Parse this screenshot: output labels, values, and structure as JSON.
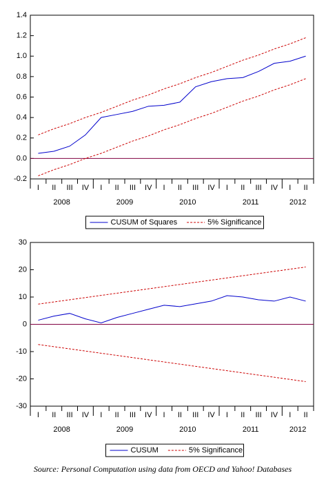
{
  "chart_data": [
    {
      "type": "line",
      "categories": [
        "I",
        "II",
        "III",
        "IV",
        "I",
        "II",
        "III",
        "IV",
        "I",
        "II",
        "III",
        "IV",
        "I",
        "II",
        "III",
        "IV",
        "I",
        "II"
      ],
      "years": [
        "2008",
        "2009",
        "2010",
        "2011",
        "2012"
      ],
      "ylim": [
        -0.2,
        1.4
      ],
      "yticks": [
        -0.2,
        {
          "value": 0,
          "label": "0.0"
        },
        0.2,
        0.4,
        0.6,
        0.8,
        {
          "value": 1,
          "label": "1.0"
        },
        1.2,
        1.4
      ],
      "legend": "bottom",
      "series": [
        {
          "name": "CUSUM of Squares",
          "color": "#0000cc",
          "values": [
            0.05,
            0.07,
            0.12,
            0.23,
            0.4,
            0.43,
            0.46,
            0.51,
            0.52,
            0.55,
            0.7,
            0.75,
            0.78,
            0.79,
            0.85,
            0.93,
            0.95,
            1.0
          ]
        },
        {
          "name": "5% Significance",
          "color": "#cc0000",
          "dashed": true,
          "values": [
            0.23,
            0.29,
            0.34,
            0.4,
            0.45,
            0.51,
            0.57,
            0.62,
            0.68,
            0.73,
            0.79,
            0.84,
            0.9,
            0.96,
            1.01,
            1.07,
            1.12,
            1.18
          ],
          "lower_values": [
            -0.17,
            -0.11,
            -0.06,
            0.0,
            0.05,
            0.11,
            0.17,
            0.22,
            0.28,
            0.33,
            0.39,
            0.44,
            0.5,
            0.56,
            0.61,
            0.67,
            0.72,
            0.78
          ]
        }
      ]
    },
    {
      "type": "line",
      "categories": [
        "I",
        "II",
        "III",
        "IV",
        "I",
        "II",
        "III",
        "IV",
        "I",
        "II",
        "III",
        "IV",
        "I",
        "II",
        "III",
        "IV",
        "I",
        "II"
      ],
      "years": [
        "2008",
        "2009",
        "2010",
        "2011",
        "2012"
      ],
      "ylim": [
        -30,
        30
      ],
      "yticks": [
        -30,
        -20,
        -10,
        0,
        10,
        20,
        30
      ],
      "legend": "bottom",
      "series": [
        {
          "name": "CUSUM",
          "color": "#0000cc",
          "values": [
            1.5,
            3,
            4,
            2,
            0.5,
            2.5,
            4,
            5.5,
            7,
            6.5,
            7.5,
            8.5,
            10.5,
            10,
            9,
            8.5,
            10,
            8.5
          ]
        },
        {
          "name": "5% Significance",
          "color": "#cc0000",
          "dashed": true,
          "values": [
            7.4,
            8.2,
            9,
            9.8,
            10.6,
            11.4,
            12.2,
            13,
            13.8,
            14.6,
            15.4,
            16.2,
            17,
            17.8,
            18.6,
            19.4,
            20.2,
            21
          ],
          "lower_values": [
            -7.4,
            -8.2,
            -9,
            -9.8,
            -10.6,
            -11.4,
            -12.2,
            -13,
            -13.8,
            -14.6,
            -15.4,
            -16.2,
            -17,
            -17.8,
            -18.6,
            -19.4,
            -20.2,
            -21
          ]
        }
      ]
    }
  ],
  "source": "Source: Personal Computation using data from OECD and Yahoo! Databases"
}
